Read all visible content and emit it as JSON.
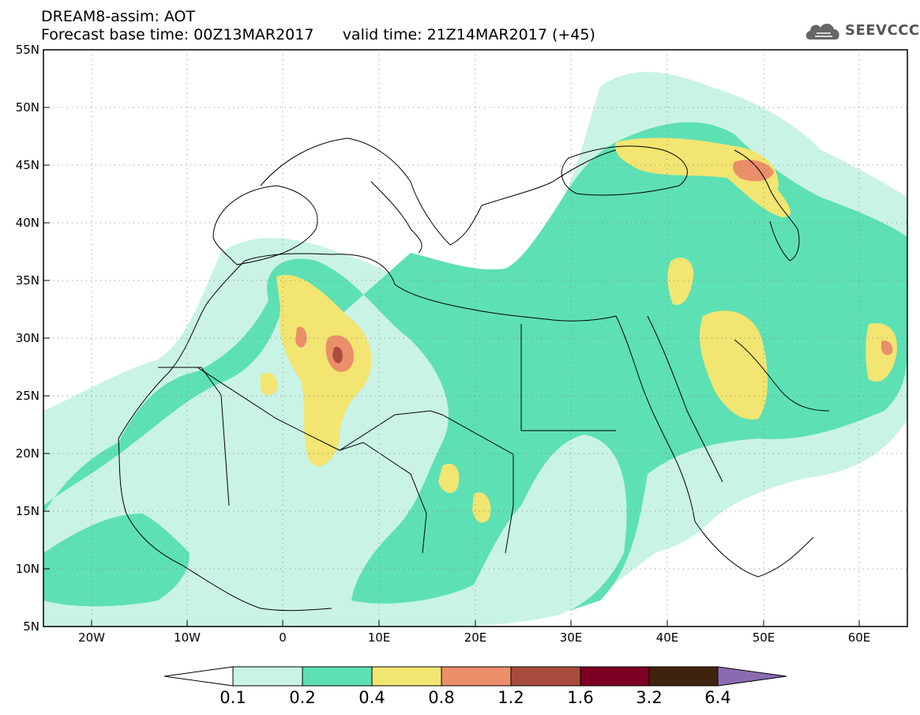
{
  "header": {
    "title": "DREAM8-assim: AOT",
    "subtitle": "Forecast base time: 00Z13MAR2017      valid time: 21Z14MAR2017 (+45)"
  },
  "logo": {
    "text": "SEEVCCC",
    "icon": "cloud-icon"
  },
  "map": {
    "field": "AOT",
    "lon_range": [
      -25,
      65
    ],
    "lat_range": [
      5,
      55
    ],
    "y_ticks": [
      "55N",
      "50N",
      "45N",
      "40N",
      "35N",
      "30N",
      "25N",
      "20N",
      "15N",
      "10N",
      "5N"
    ],
    "x_ticks": [
      "20W",
      "10W",
      "0",
      "10E",
      "20E",
      "30E",
      "40E",
      "50E",
      "60E"
    ],
    "grid": "dotted"
  },
  "colorbar": {
    "levels": [
      "0.1",
      "0.2",
      "0.4",
      "0.8",
      "1.2",
      "1.6",
      "3.2",
      "6.4"
    ],
    "colors": [
      "#c9f3e5",
      "#5de0b4",
      "#f2e571",
      "#eb8e6a",
      "#a84d3e",
      "#7d0024",
      "#40230f"
    ],
    "low_color": "#ffffff",
    "high_color": "#8b6bb0"
  }
}
